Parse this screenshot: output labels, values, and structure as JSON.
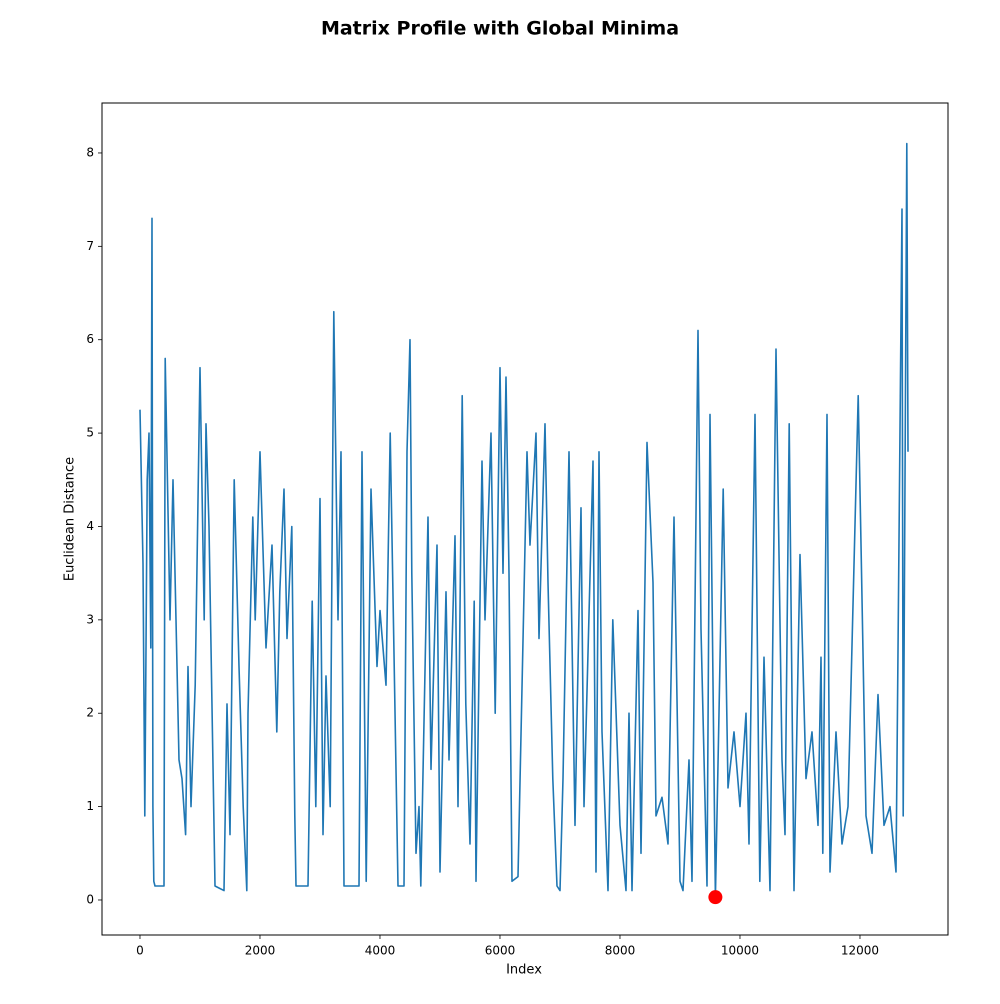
{
  "chart_data": {
    "type": "line",
    "title": "Matrix Profile with Global Minima",
    "xlabel": "Index",
    "ylabel": "Euclidean Distance",
    "color": "#1f77b4",
    "x": [
      0,
      50,
      80,
      120,
      150,
      180,
      200,
      215,
      230,
      250,
      400,
      420,
      500,
      550,
      600,
      650,
      700,
      760,
      800,
      850,
      920,
      1000,
      1070,
      1100,
      1150,
      1250,
      1400,
      1450,
      1500,
      1570,
      1650,
      1720,
      1780,
      1800,
      1880,
      1920,
      2000,
      2100,
      2200,
      2280,
      2330,
      2400,
      2450,
      2530,
      2580,
      2600,
      2800,
      2870,
      2930,
      3000,
      3050,
      3100,
      3170,
      3230,
      3300,
      3350,
      3400,
      3650,
      3700,
      3770,
      3850,
      3950,
      4000,
      4100,
      4170,
      4300,
      4400,
      4450,
      4500,
      4530,
      4600,
      4650,
      4680,
      4800,
      4850,
      4950,
      5000,
      5100,
      5150,
      5250,
      5300,
      5370,
      5430,
      5500,
      5570,
      5600,
      5700,
      5750,
      5850,
      5920,
      6000,
      6050,
      6100,
      6150,
      6200,
      6300,
      6450,
      6500,
      6600,
      6650,
      6750,
      6800,
      6880,
      6950,
      7000,
      7050,
      7150,
      7250,
      7350,
      7400,
      7550,
      7600,
      7650,
      7700,
      7800,
      7880,
      8000,
      8100,
      8150,
      8200,
      8300,
      8350,
      8450,
      8550,
      8600,
      8700,
      8800,
      8900,
      9000,
      9050,
      9150,
      9200,
      9300,
      9350,
      9450,
      9500,
      9590,
      9650,
      9720,
      9800,
      9900,
      10000,
      10100,
      10150,
      10250,
      10330,
      10400,
      10500,
      10600,
      10700,
      10750,
      10820,
      10900,
      11000,
      11100,
      11200,
      11300,
      11350,
      11380,
      11450,
      11500,
      11600,
      11700,
      11800,
      11970,
      12020,
      12100,
      12200,
      12300,
      12400,
      12500,
      12600,
      12700,
      12720,
      12780,
      12800
    ],
    "values": [
      5.25,
      3.6,
      0.9,
      4.5,
      5.0,
      2.7,
      7.3,
      1.0,
      0.2,
      0.15,
      0.15,
      5.8,
      3.0,
      4.5,
      3.0,
      1.5,
      1.3,
      0.7,
      2.5,
      1.0,
      2.3,
      5.7,
      3.0,
      5.1,
      4.0,
      0.15,
      0.1,
      2.1,
      0.7,
      4.5,
      2.5,
      1.0,
      0.1,
      2.0,
      4.1,
      3.0,
      4.8,
      2.7,
      3.8,
      1.8,
      3.3,
      4.4,
      2.8,
      4.0,
      0.9,
      0.15,
      0.15,
      3.2,
      1.0,
      4.3,
      0.7,
      2.4,
      1.0,
      6.3,
      3.0,
      4.8,
      0.15,
      0.15,
      4.8,
      0.2,
      4.4,
      2.5,
      3.1,
      2.3,
      5.0,
      0.15,
      0.15,
      4.8,
      6.0,
      3.5,
      0.5,
      1.0,
      0.15,
      4.1,
      1.4,
      3.8,
      0.3,
      3.3,
      1.5,
      3.9,
      1.0,
      5.4,
      2.1,
      0.6,
      3.2,
      0.2,
      4.7,
      3.0,
      5.0,
      2.0,
      5.7,
      3.5,
      5.6,
      3.5,
      0.2,
      0.25,
      4.8,
      3.8,
      5.0,
      2.8,
      5.1,
      3.4,
      1.3,
      0.15,
      0.1,
      1.3,
      4.8,
      0.8,
      4.2,
      1.0,
      4.7,
      0.3,
      4.8,
      1.8,
      0.1,
      3.0,
      0.8,
      0.1,
      2.0,
      0.1,
      3.1,
      0.5,
      4.9,
      3.4,
      0.9,
      1.1,
      0.6,
      4.1,
      0.2,
      0.1,
      1.5,
      0.2,
      6.1,
      2.9,
      0.15,
      5.2,
      0.03,
      2.0,
      4.4,
      1.2,
      1.8,
      1.0,
      2.0,
      0.6,
      5.2,
      0.2,
      2.6,
      0.1,
      5.9,
      1.5,
      0.7,
      5.1,
      0.1,
      3.7,
      1.3,
      1.8,
      0.8,
      2.6,
      0.5,
      5.2,
      0.3,
      1.8,
      0.6,
      1.0,
      5.4,
      3.7,
      0.9,
      0.5,
      2.2,
      0.8,
      1.0,
      0.3,
      7.4,
      0.9,
      8.1,
      4.8
    ],
    "minimum": {
      "x": 9590,
      "y": 0.03,
      "color": "#ff0000"
    },
    "xlim": [
      -633,
      13467
    ],
    "ylim": [
      -0.375,
      8.535
    ],
    "xticks": [
      0,
      2000,
      4000,
      6000,
      8000,
      10000,
      12000
    ],
    "yticks": [
      0,
      1,
      2,
      3,
      4,
      5,
      6,
      7,
      8
    ]
  }
}
